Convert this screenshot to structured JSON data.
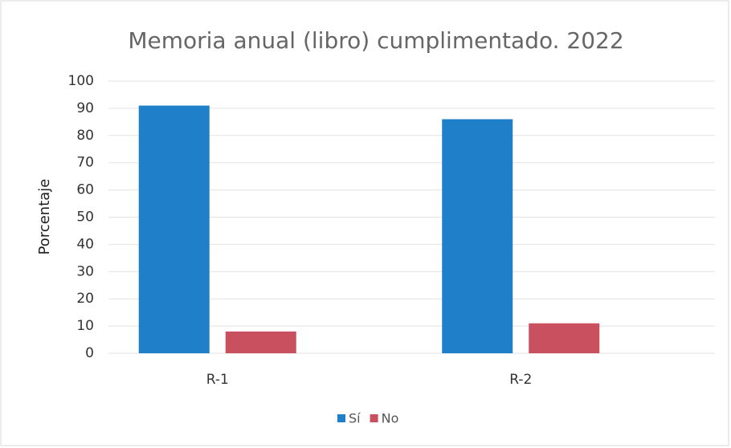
{
  "chart_data": {
    "type": "bar",
    "title": "Memoria anual (libro) cumplimentado. 2022",
    "ylabel": "Porcentaje",
    "categories": [
      "R-1",
      "R-2"
    ],
    "series": [
      {
        "name": "Sí",
        "color": "#1f7fc9",
        "values": [
          91,
          86
        ]
      },
      {
        "name": "No",
        "color": "#c9505e",
        "values": [
          8,
          11
        ]
      }
    ],
    "ylim": [
      0,
      100
    ],
    "yticks": [
      0,
      10,
      20,
      30,
      40,
      50,
      60,
      70,
      80,
      90,
      100
    ],
    "grid": true,
    "legend": "bottom"
  }
}
